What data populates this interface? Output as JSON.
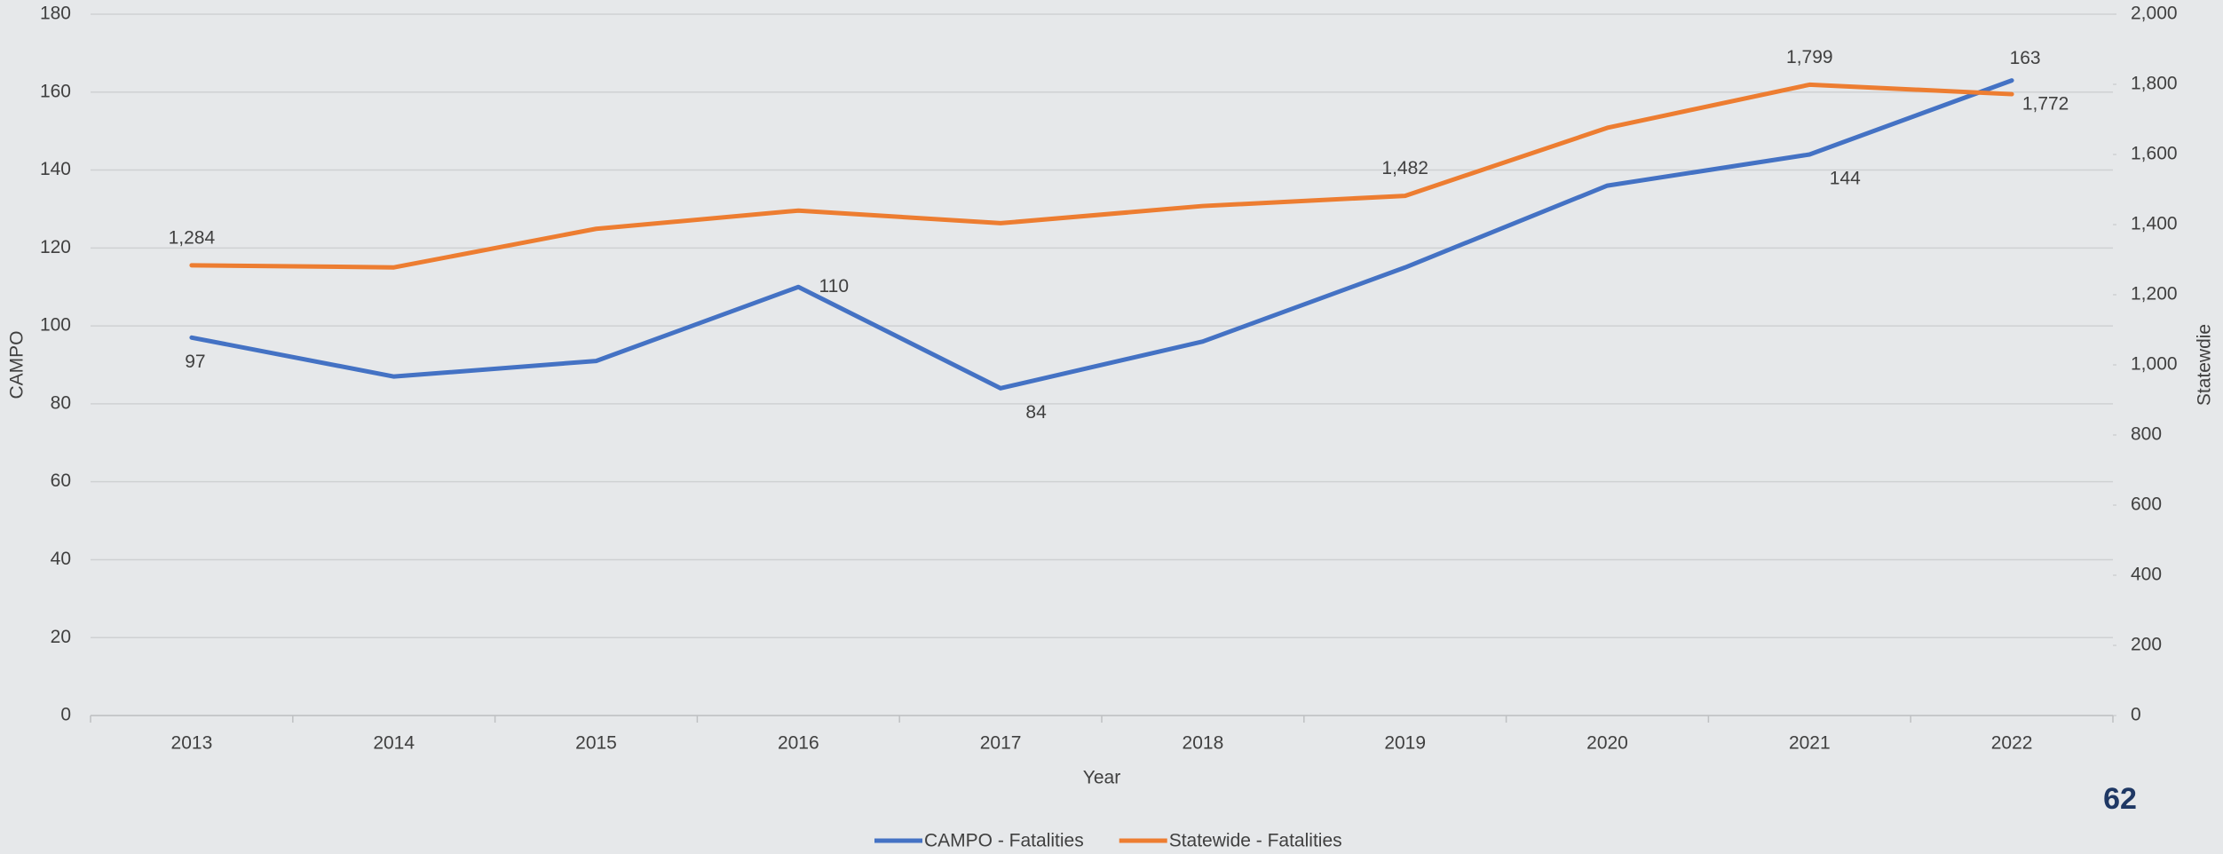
{
  "chart_data": {
    "type": "line",
    "categories": [
      "2013",
      "2014",
      "2015",
      "2016",
      "2017",
      "2018",
      "2019",
      "2020",
      "2021",
      "2022"
    ],
    "x_label": "Year",
    "y_label": "CAMPO",
    "y2_label": "Statewdie",
    "series": [
      {
        "name": "CAMPO - Fatalities",
        "color": "#4472c4",
        "values": [
          97,
          87,
          91,
          110,
          84,
          96,
          115,
          136,
          144,
          163
        ],
        "value_labels": [
          "97",
          null,
          null,
          "110",
          "84",
          null,
          null,
          null,
          "144",
          "163"
        ]
      },
      {
        "name": "Statewide - Fatalities",
        "color": "#ed7d31",
        "axis": "y2",
        "values": [
          1284,
          1278,
          1388,
          1440,
          1404,
          1453,
          1482,
          1676,
          1799,
          1772
        ],
        "value_labels": [
          "1,284",
          null,
          null,
          null,
          null,
          null,
          "1,482",
          null,
          "1,799",
          "1,772"
        ]
      }
    ],
    "ylim": [
      0,
      180
    ],
    "yticks": [
      0,
      20,
      40,
      60,
      80,
      100,
      120,
      140,
      160,
      180
    ],
    "y2lim": [
      0,
      2000
    ],
    "y2ticks": [
      0,
      200,
      400,
      600,
      800,
      {
        "value": 1000,
        "label": "1,000"
      },
      {
        "value": 1200,
        "label": "1,200"
      },
      {
        "value": 1400,
        "label": "1,400"
      },
      {
        "value": 1600,
        "label": "1,600"
      },
      {
        "value": 1800,
        "label": "1,800"
      },
      {
        "value": 2000,
        "label": "2,000"
      }
    ],
    "grid": true,
    "legend": "bottom"
  },
  "page_number": "62"
}
